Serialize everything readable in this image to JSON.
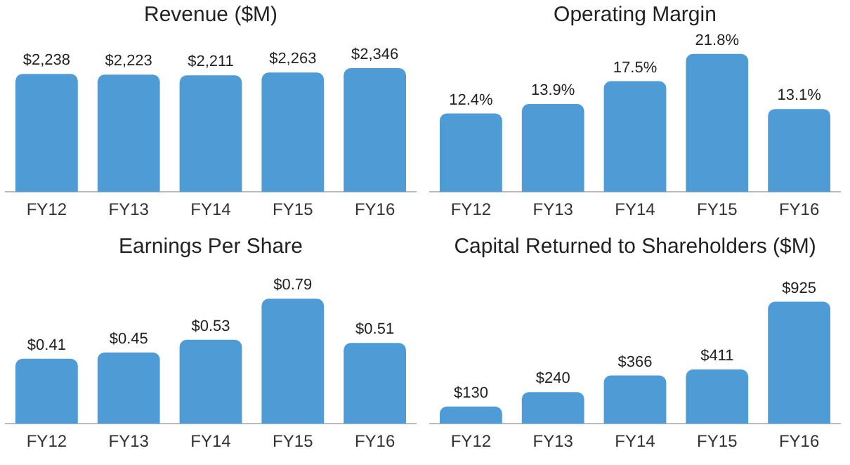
{
  "chart_data": [
    {
      "type": "bar",
      "title": "Revenue ($M)",
      "categories": [
        "FY12",
        "FY13",
        "FY14",
        "FY15",
        "FY16"
      ],
      "values": [
        2238,
        2223,
        2211,
        2263,
        2346
      ],
      "value_labels": [
        "$2,238",
        "$2,223",
        "$2,211",
        "$2,263",
        "$2,346"
      ],
      "color": "#4e9bd6",
      "tick_labels": "x"
    },
    {
      "type": "bar",
      "title": "Operating Margin",
      "categories": [
        "FY12",
        "FY13",
        "FY14",
        "FY15",
        "FY16"
      ],
      "values": [
        12.4,
        13.9,
        17.5,
        21.8,
        13.1
      ],
      "value_labels": [
        "12.4%",
        "13.9%",
        "17.5%",
        "21.8%",
        "13.1%"
      ],
      "color": "#4e9bd6",
      "tick_labels": "x"
    },
    {
      "type": "bar",
      "title": "Earnings Per Share",
      "categories": [
        "FY12",
        "FY13",
        "FY14",
        "FY15",
        "FY16"
      ],
      "values": [
        0.41,
        0.45,
        0.53,
        0.79,
        0.51
      ],
      "value_labels": [
        "$0.41",
        "$0.45",
        "$0.53",
        "$0.79",
        "$0.51"
      ],
      "color": "#4e9bd6",
      "tick_labels": "x"
    },
    {
      "type": "bar",
      "title": "Capital Returned to Shareholders ($M)",
      "categories": [
        "FY12",
        "FY13",
        "FY14",
        "FY15",
        "FY16"
      ],
      "values": [
        130,
        240,
        366,
        411,
        925
      ],
      "value_labels": [
        "$130",
        "$240",
        "$366",
        "$411",
        "$925"
      ],
      "color": "#4e9bd6",
      "tick_labels": "x"
    }
  ]
}
